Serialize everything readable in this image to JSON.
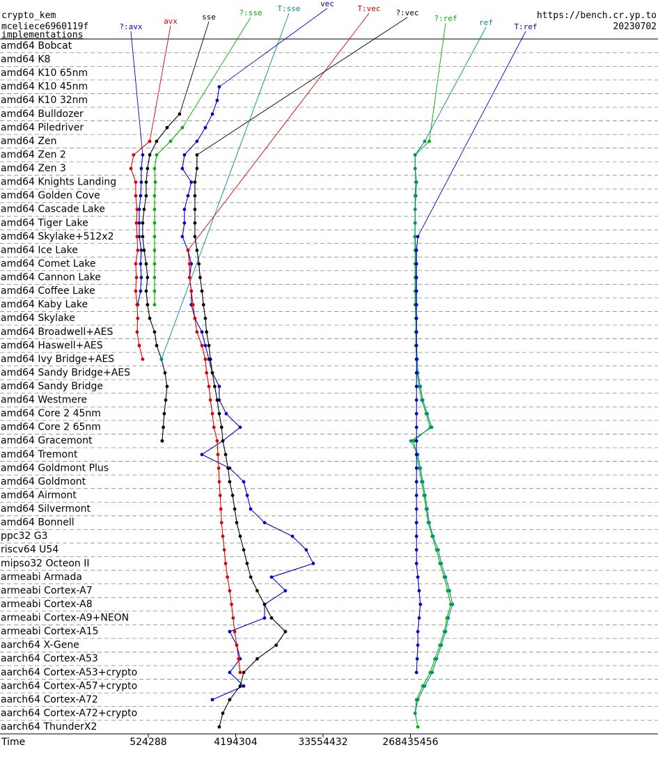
{
  "chart_data": {
    "type": "line",
    "title": "crypto_kem",
    "subtitle": "mceliece6960119f",
    "caption": "implementations",
    "source": "https://bench.cr.yp.to",
    "date": "20230702",
    "xlabel": "Time",
    "xscale": "log",
    "xlim": [
      15400,
      97000000000
    ],
    "xticks": [
      524288,
      4194304,
      33554432,
      268435456
    ],
    "grid": true,
    "categories": [
      "amd64 Bobcat",
      "amd64 K8",
      "amd64 K10 65nm",
      "amd64 K10 45nm",
      "amd64 K10 32nm",
      "amd64 Bulldozer",
      "amd64 Piledriver",
      "amd64 Zen",
      "amd64 Zen 2",
      "amd64 Zen 3",
      "amd64 Knights Landing",
      "amd64 Golden Cove",
      "amd64 Cascade Lake",
      "amd64 Tiger Lake",
      "amd64 Skylake+512x2",
      "amd64 Ice Lake",
      "amd64 Comet Lake",
      "amd64 Cannon Lake",
      "amd64 Coffee Lake",
      "amd64 Kaby Lake",
      "amd64 Skylake",
      "amd64 Broadwell+AES",
      "amd64 Haswell+AES",
      "amd64 Ivy Bridge+AES",
      "amd64 Sandy Bridge+AES",
      "amd64 Sandy Bridge",
      "amd64 Westmere",
      "amd64 Core 2 45nm",
      "amd64 Core 2 65nm",
      "amd64 Gracemont",
      "amd64 Tremont",
      "amd64 Goldmont Plus",
      "amd64 Goldmont",
      "amd64 Airmont",
      "amd64 Silvermont",
      "amd64 Bonnell",
      "ppc32 G3",
      "riscv64 U54",
      "mipso32 Octeon II",
      "armeabi Armada",
      "armeabi Cortex-A7",
      "armeabi Cortex-A8",
      "armeabi Cortex-A9+NEON",
      "armeabi Cortex-A15",
      "aarch64 X-Gene",
      "aarch64 Cortex-A53",
      "aarch64 Cortex-A53+crypto",
      "aarch64 Cortex-A57+crypto",
      "aarch64 Cortex-A72",
      "aarch64 Cortex-A72+crypto",
      "aarch64 ThunderX2"
    ],
    "series": [
      {
        "name": "?:avx",
        "color": "#0000cc",
        "values": [
          null,
          null,
          null,
          null,
          null,
          null,
          null,
          null,
          459000,
          444000,
          444000,
          437000,
          423000,
          423000,
          423000,
          444000,
          437000,
          444000,
          437000,
          408000,
          null,
          null,
          null,
          null,
          null,
          null,
          null,
          null,
          null,
          null,
          null,
          null,
          null,
          null,
          null,
          null,
          null,
          null,
          null,
          null,
          null,
          null,
          null,
          null,
          null,
          null,
          null,
          null,
          null,
          null,
          null
        ]
      },
      {
        "name": "avx",
        "color": "#dd0000",
        "values": [
          null,
          null,
          null,
          null,
          null,
          null,
          null,
          543000,
          370000,
          347000,
          389000,
          389000,
          402000,
          396000,
          402000,
          408000,
          389000,
          396000,
          389000,
          402000,
          408000,
          402000,
          423000,
          459000,
          null,
          null,
          null,
          null,
          null,
          730000,
          null,
          null,
          null,
          null,
          null,
          null,
          null,
          null,
          null,
          null,
          null,
          null,
          null,
          null,
          null,
          null,
          null,
          null,
          null,
          null,
          null
        ]
      },
      {
        "name": "sse",
        "color": "#000000",
        "values": [
          null,
          null,
          null,
          null,
          null,
          1105000,
          820000,
          640000,
          543000,
          515000,
          499000,
          499000,
          475000,
          459000,
          459000,
          475000,
          499000,
          515000,
          499000,
          515000,
          543000,
          609000,
          640000,
          718000,
          780000,
          820000,
          794000,
          767000,
          750000,
          730000,
          null,
          null,
          null,
          null,
          null,
          null,
          null,
          null,
          null,
          null,
          null,
          null,
          null,
          null,
          null,
          null,
          null,
          null,
          null,
          null,
          null
        ]
      },
      {
        "name": "?:sse",
        "color": "#00b000",
        "values": [
          null,
          null,
          null,
          null,
          null,
          null,
          1180000,
          891000,
          640000,
          609000,
          619000,
          609000,
          609000,
          609000,
          609000,
          609000,
          609000,
          609000,
          609000,
          609000,
          null,
          null,
          null,
          null,
          null,
          null,
          null,
          null,
          null,
          null,
          null,
          null,
          null,
          null,
          null,
          null,
          null,
          null,
          null,
          null,
          null,
          null,
          null,
          null,
          null,
          null,
          null,
          null,
          null,
          null,
          null
        ]
      },
      {
        "name": "T:sse",
        "color": "#008b8b",
        "values": [
          null,
          null,
          null,
          null,
          null,
          null,
          null,
          null,
          null,
          null,
          null,
          null,
          null,
          null,
          null,
          null,
          null,
          null,
          null,
          null,
          null,
          null,
          null,
          718000,
          null,
          null,
          null,
          null,
          null,
          null,
          null,
          null,
          null,
          null,
          null,
          null,
          null,
          null,
          null,
          null,
          null,
          null,
          null,
          null,
          null,
          null,
          null,
          null,
          null,
          null,
          null
        ]
      },
      {
        "name": "vec",
        "color": "#0000cc",
        "values": [
          null,
          null,
          null,
          2840000,
          2700000,
          2410000,
          2040000,
          1670000,
          1240000,
          1180000,
          1460000,
          1350000,
          1240000,
          1240000,
          1180000,
          1350000,
          1460000,
          1400000,
          1460000,
          1460000,
          1590000,
          1880000,
          2040000,
          2220000,
          2410000,
          2840000,
          2840000,
          3350000,
          4670000,
          3090000,
          1880000,
          3640000,
          5080000,
          5520000,
          5990000,
          8340000,
          16200000,
          22500000,
          26600000,
          9850000,
          13700000,
          8340000,
          8340000,
          3640000,
          4300000,
          4670000,
          3640000,
          5080000,
          2410000,
          null,
          null
        ]
      },
      {
        "name": "T:vec",
        "color": "#dd0000",
        "values": [
          null,
          null,
          null,
          null,
          null,
          null,
          null,
          null,
          null,
          null,
          null,
          null,
          null,
          null,
          null,
          1350000,
          1400000,
          1400000,
          1460000,
          1520000,
          1590000,
          1670000,
          1880000,
          2040000,
          2100000,
          2220000,
          2300000,
          2410000,
          2500000,
          2700000,
          2750000,
          2800000,
          2840000,
          2900000,
          2950000,
          3000000,
          3090000,
          3200000,
          3300000,
          3450000,
          3640000,
          3800000,
          3950000,
          4100000,
          4300000,
          4500000,
          4670000,
          null,
          null,
          null,
          null
        ]
      },
      {
        "name": "?:vec",
        "color": "#000000",
        "values": [
          null,
          null,
          null,
          null,
          null,
          null,
          null,
          null,
          1670000,
          1670000,
          1590000,
          1590000,
          1590000,
          1590000,
          1590000,
          1670000,
          1750000,
          1800000,
          1880000,
          1950000,
          2040000,
          2100000,
          2220000,
          2300000,
          2410000,
          2550000,
          2700000,
          2840000,
          3000000,
          3090000,
          3300000,
          3500000,
          3640000,
          3900000,
          4100000,
          4300000,
          4670000,
          5080000,
          5500000,
          6000000,
          7000000,
          8340000,
          9850000,
          13700000,
          11000000,
          7000000,
          5080000,
          4670000,
          3640000,
          3090000,
          2840000
        ]
      },
      {
        "name": "?:ref",
        "color": "#00b000",
        "values": [
          null,
          null,
          null,
          null,
          null,
          null,
          null,
          420000000,
          300000000,
          300000000,
          305000000,
          300000000,
          300000000,
          300000000,
          298000000,
          300000000,
          300000000,
          300000000,
          300000000,
          300000000,
          305000000,
          305000000,
          305000000,
          310000000,
          315000000,
          330000000,
          350000000,
          390000000,
          430000000,
          290000000,
          310000000,
          330000000,
          350000000,
          370000000,
          390000000,
          410000000,
          450000000,
          500000000,
          540000000,
          600000000,
          650000000,
          700000000,
          640000000,
          600000000,
          540000000,
          480000000,
          430000000,
          360000000,
          310000000,
          300000000,
          320000000
        ]
      },
      {
        "name": "ref",
        "color": "#008b8b",
        "values": [
          null,
          null,
          null,
          null,
          null,
          null,
          null,
          377000000,
          300000000,
          300000000,
          310000000,
          305000000,
          300000000,
          300000000,
          300000000,
          305000000,
          305000000,
          305000000,
          305000000,
          305000000,
          310000000,
          310000000,
          310000000,
          315000000,
          320000000,
          340000000,
          360000000,
          400000000,
          445000000,
          271000000,
          320000000,
          340000000,
          360000000,
          380000000,
          400000000,
          420000000,
          460000000,
          520000000,
          560000000,
          620000000,
          680000000,
          732000000,
          660000000,
          620000000,
          560000000,
          500000000,
          450000000,
          377000000,
          320000000,
          300000000,
          null
        ]
      },
      {
        "name": "T:ref",
        "color": "#0000cc",
        "values": [
          null,
          null,
          null,
          null,
          null,
          null,
          null,
          null,
          null,
          null,
          null,
          null,
          null,
          null,
          320000000,
          310000000,
          310000000,
          310000000,
          310000000,
          310000000,
          310000000,
          310000000,
          310000000,
          310000000,
          310000000,
          310000000,
          310000000,
          310000000,
          310000000,
          310000000,
          310000000,
          310000000,
          310000000,
          310000000,
          310000000,
          310000000,
          310000000,
          310000000,
          310000000,
          320000000,
          330000000,
          340000000,
          330000000,
          320000000,
          320000000,
          315000000,
          310000000,
          null,
          null,
          null,
          null
        ]
      }
    ]
  }
}
